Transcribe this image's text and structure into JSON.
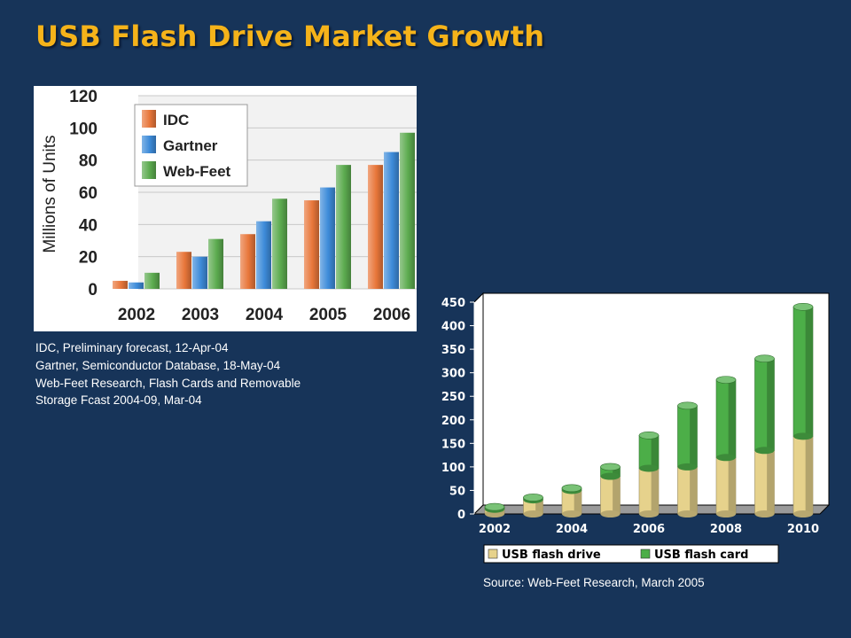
{
  "page": {
    "title": "USB Flash Drive Market Growth"
  },
  "sources": [
    "IDC, Preliminary forecast, 12-Apr-04",
    "Gartner, Semiconductor Database, 18-May-04",
    "Web-Feet Research, Flash Cards and Removable",
    "Storage Fcast 2004-09, Mar-04"
  ],
  "source2": "Source: Web-Feet Research, March 2005",
  "chart_data": [
    {
      "type": "bar",
      "ylabel": "Millions of Units",
      "ylim": [
        0,
        120
      ],
      "yticks": [
        0,
        20,
        40,
        60,
        80,
        100,
        120
      ],
      "categories": [
        "2002",
        "2003",
        "2004",
        "2005",
        "2006"
      ],
      "grid": true,
      "legend": "top-left",
      "series": [
        {
          "name": "IDC",
          "color": "#e8763a",
          "values": [
            5,
            23,
            34,
            55,
            77
          ]
        },
        {
          "name": "Gartner",
          "color": "#3d8bd9",
          "values": [
            4,
            20,
            42,
            63,
            85
          ]
        },
        {
          "name": "Web-Feet",
          "color": "#5cab4f",
          "values": [
            10,
            31,
            56,
            77,
            97
          ]
        }
      ]
    },
    {
      "type": "bar",
      "stacked": true,
      "style": "3d-cylinder",
      "x": [
        2002,
        2003,
        2004,
        2005,
        2006,
        2007,
        2008,
        2009,
        2010
      ],
      "xticks": [
        "2002",
        "2004",
        "2006",
        "2008",
        "2010"
      ],
      "ylim": [
        0,
        450
      ],
      "yticks": [
        0,
        50,
        100,
        150,
        200,
        250,
        300,
        350,
        400,
        450
      ],
      "grid": false,
      "legend": "bottom",
      "series": [
        {
          "name": "USB flash drive",
          "color": "#e6d28c",
          "values": [
            10,
            30,
            50,
            80,
            97,
            100,
            120,
            135,
            165
          ]
        },
        {
          "name": "USB flash card",
          "color": "#4cae48",
          "values": [
            5,
            5,
            5,
            20,
            70,
            130,
            165,
            195,
            275
          ]
        }
      ]
    }
  ]
}
